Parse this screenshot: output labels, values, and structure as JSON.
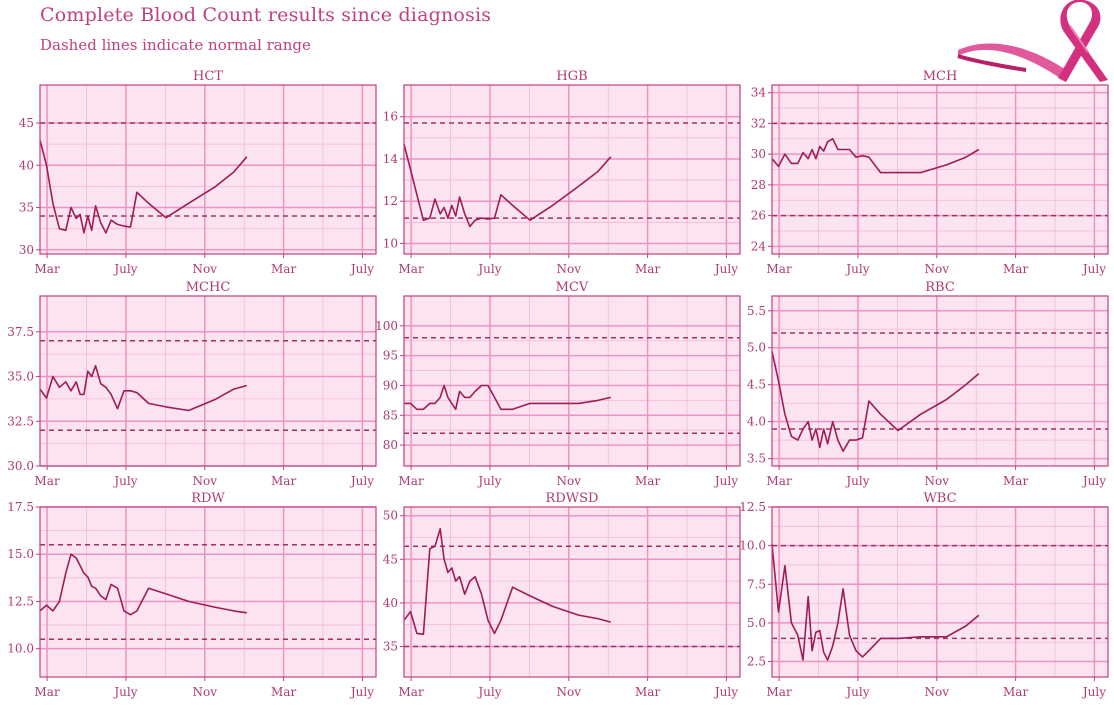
{
  "header": {
    "title": "Complete Blood Count results since diagnosis",
    "subtitle": "Dashed lines indicate normal range"
  },
  "colors": {
    "panel_bg": "#fbe4f0",
    "grid": "#ee93c6",
    "border": "#c2407f",
    "line": "#9e1c57",
    "ref": "#a0315f",
    "text": "#b03a72"
  },
  "chart_data": [
    {
      "type": "line",
      "title": "HCT",
      "x_ticks": [
        "Mar",
        "July",
        "Nov",
        "Mar",
        "July"
      ],
      "xlim": [
        0,
        520
      ],
      "x_tick_values": [
        11,
        133,
        255,
        377,
        499
      ],
      "ylim": [
        29.5,
        49.5
      ],
      "y_ticks": [
        30,
        35,
        40,
        45
      ],
      "y_tick_labels": [
        "30",
        "35",
        "40",
        "45"
      ],
      "ref": [
        34,
        45
      ],
      "series": [
        {
          "x": [
            0,
            10,
            20,
            30,
            40,
            48,
            56,
            62,
            68,
            74,
            80,
            86,
            94,
            102,
            110,
            120,
            130,
            140,
            150,
            168,
            195,
            230,
            270,
            300,
            320
          ],
          "y": [
            43,
            40,
            35.5,
            32.5,
            32.3,
            35,
            33.7,
            34.2,
            32,
            34,
            32.3,
            35.2,
            33.2,
            32,
            33.5,
            33,
            32.8,
            32.7,
            36.8,
            35.5,
            33.8,
            35.5,
            37.4,
            39.2,
            41
          ]
        }
      ]
    },
    {
      "type": "line",
      "title": "HGB",
      "x_ticks": [
        "Mar",
        "July",
        "Nov",
        "Mar",
        "July"
      ],
      "xlim": [
        0,
        520
      ],
      "x_tick_values": [
        11,
        133,
        255,
        377,
        499
      ],
      "ylim": [
        9.5,
        17.5
      ],
      "y_ticks": [
        10,
        12,
        14,
        16
      ],
      "y_tick_labels": [
        "10",
        "12",
        "14",
        "16"
      ],
      "ref": [
        11.2,
        15.7
      ],
      "series": [
        {
          "x": [
            0,
            10,
            20,
            30,
            40,
            48,
            56,
            62,
            68,
            74,
            80,
            86,
            94,
            102,
            110,
            120,
            130,
            140,
            150,
            168,
            195,
            230,
            270,
            300,
            320
          ],
          "y": [
            14.7,
            13.5,
            12.3,
            11.1,
            11.2,
            12.1,
            11.4,
            11.7,
            11.2,
            11.8,
            11.3,
            12.2,
            11.4,
            10.8,
            11.1,
            11.2,
            11.15,
            11.2,
            12.3,
            11.8,
            11.1,
            11.8,
            12.7,
            13.4,
            14.1
          ]
        }
      ]
    },
    {
      "type": "line",
      "title": "MCH",
      "x_ticks": [
        "Mar",
        "July",
        "Nov",
        "Mar",
        "July"
      ],
      "xlim": [
        0,
        520
      ],
      "x_tick_values": [
        11,
        133,
        255,
        377,
        499
      ],
      "ylim": [
        23.5,
        34.5
      ],
      "y_ticks": [
        24,
        26,
        28,
        30,
        32,
        34
      ],
      "y_tick_labels": [
        "24",
        "26",
        "28",
        "30",
        "32",
        "34"
      ],
      "ref": [
        26,
        32
      ],
      "series": [
        {
          "x": [
            0,
            10,
            20,
            30,
            40,
            48,
            56,
            62,
            68,
            74,
            80,
            86,
            94,
            102,
            110,
            120,
            130,
            140,
            150,
            168,
            195,
            230,
            270,
            300,
            320
          ],
          "y": [
            29.7,
            29.2,
            30,
            29.4,
            29.4,
            30.1,
            29.7,
            30.3,
            29.7,
            30.5,
            30.2,
            30.8,
            31,
            30.3,
            30.3,
            30.3,
            29.8,
            29.9,
            29.8,
            28.8,
            28.8,
            28.8,
            29.3,
            29.8,
            30.3
          ]
        }
      ]
    },
    {
      "type": "line",
      "title": "MCHC",
      "x_ticks": [
        "Mar",
        "July",
        "Nov",
        "Mar",
        "July"
      ],
      "xlim": [
        0,
        520
      ],
      "x_tick_values": [
        11,
        133,
        255,
        377,
        499
      ],
      "ylim": [
        30,
        39.5
      ],
      "y_ticks": [
        30,
        32.5,
        35,
        37.5
      ],
      "y_tick_labels": [
        "30.0",
        "32.5",
        "35.0",
        "37.5"
      ],
      "ref": [
        32,
        37
      ],
      "series": [
        {
          "x": [
            0,
            10,
            20,
            30,
            40,
            48,
            56,
            62,
            68,
            74,
            80,
            86,
            94,
            102,
            110,
            120,
            130,
            140,
            150,
            168,
            195,
            230,
            270,
            300,
            320
          ],
          "y": [
            34.3,
            33.8,
            35,
            34.4,
            34.7,
            34.2,
            34.7,
            34,
            34,
            35.3,
            35,
            35.6,
            34.6,
            34.4,
            34,
            33.2,
            34.2,
            34.2,
            34.1,
            33.5,
            33.3,
            33.1,
            33.7,
            34.3,
            34.5
          ]
        }
      ]
    },
    {
      "type": "line",
      "title": "MCV",
      "x_ticks": [
        "Mar",
        "July",
        "Nov",
        "Mar",
        "July"
      ],
      "xlim": [
        0,
        520
      ],
      "x_tick_values": [
        11,
        133,
        255,
        377,
        499
      ],
      "ylim": [
        76.5,
        105
      ],
      "y_ticks": [
        80,
        85,
        90,
        95,
        100
      ],
      "y_tick_labels": [
        "80",
        "85",
        "90",
        "95",
        "100"
      ],
      "ref": [
        82,
        98
      ],
      "series": [
        {
          "x": [
            0,
            10,
            20,
            30,
            40,
            48,
            56,
            62,
            68,
            74,
            80,
            86,
            94,
            102,
            110,
            120,
            130,
            140,
            150,
            168,
            195,
            230,
            270,
            300,
            320
          ],
          "y": [
            87,
            87,
            86,
            86,
            87,
            87,
            88,
            90,
            88,
            87,
            86,
            89,
            88,
            88,
            89,
            90,
            90,
            88,
            86,
            86,
            87,
            87,
            87,
            87.5,
            88
          ]
        }
      ]
    },
    {
      "type": "line",
      "title": "RBC",
      "x_ticks": [
        "Mar",
        "July",
        "Nov",
        "Mar",
        "July"
      ],
      "xlim": [
        0,
        520
      ],
      "x_tick_values": [
        11,
        133,
        255,
        377,
        499
      ],
      "ylim": [
        3.4,
        5.7
      ],
      "y_ticks": [
        3.5,
        4.0,
        4.5,
        5.0,
        5.5
      ],
      "y_tick_labels": [
        "3.5",
        "4.0",
        "4.5",
        "5.0",
        "5.5"
      ],
      "ref": [
        3.9,
        5.2
      ],
      "series": [
        {
          "x": [
            0,
            10,
            20,
            30,
            40,
            48,
            56,
            62,
            68,
            74,
            80,
            86,
            94,
            102,
            110,
            120,
            130,
            140,
            150,
            168,
            195,
            230,
            270,
            300,
            320
          ],
          "y": [
            4.95,
            4.55,
            4.1,
            3.8,
            3.75,
            3.9,
            4.0,
            3.75,
            3.9,
            3.65,
            3.9,
            3.7,
            4.0,
            3.75,
            3.6,
            3.75,
            3.75,
            3.78,
            4.28,
            4.1,
            3.88,
            4.1,
            4.3,
            4.5,
            4.65
          ]
        }
      ]
    },
    {
      "type": "line",
      "title": "RDW",
      "x_ticks": [
        "Mar",
        "July",
        "Nov",
        "Mar",
        "July"
      ],
      "xlim": [
        0,
        520
      ],
      "x_tick_values": [
        11,
        133,
        255,
        377,
        499
      ],
      "ylim": [
        8.5,
        17.5
      ],
      "y_ticks": [
        10,
        12.5,
        15,
        17.5
      ],
      "y_tick_labels": [
        "10.0",
        "12.5",
        "15.0",
        "17.5"
      ],
      "ref": [
        10.5,
        15.5
      ],
      "series": [
        {
          "x": [
            0,
            10,
            20,
            30,
            40,
            48,
            56,
            62,
            68,
            74,
            80,
            86,
            94,
            102,
            110,
            120,
            130,
            140,
            150,
            168,
            195,
            230,
            270,
            300,
            320
          ],
          "y": [
            12,
            12.3,
            12,
            12.5,
            14,
            15,
            14.8,
            14.4,
            14,
            13.8,
            13.3,
            13.2,
            12.8,
            12.6,
            13.4,
            13.2,
            12,
            11.8,
            12,
            13.2,
            12.9,
            12.5,
            12.2,
            12.0,
            11.9
          ]
        }
      ]
    },
    {
      "type": "line",
      "title": "RDWSD",
      "x_ticks": [
        "Mar",
        "July",
        "Nov",
        "Mar",
        "July"
      ],
      "xlim": [
        0,
        520
      ],
      "x_tick_values": [
        11,
        133,
        255,
        377,
        499
      ],
      "ylim": [
        31.5,
        51
      ],
      "y_ticks": [
        35,
        40,
        45,
        50
      ],
      "y_tick_labels": [
        "35",
        "40",
        "45",
        "50"
      ],
      "ref": [
        35,
        46.5
      ],
      "series": [
        {
          "x": [
            0,
            10,
            20,
            30,
            40,
            48,
            56,
            62,
            68,
            74,
            80,
            86,
            94,
            102,
            110,
            120,
            130,
            140,
            150,
            168,
            195,
            230,
            270,
            300,
            320
          ],
          "y": [
            38,
            39,
            36.5,
            36.4,
            46.2,
            46.5,
            48.5,
            45,
            43.5,
            44,
            42.5,
            43,
            41,
            42.5,
            43,
            41,
            38,
            36.5,
            38,
            41.8,
            40.8,
            39.6,
            38.6,
            38.2,
            37.8
          ]
        }
      ]
    },
    {
      "type": "line",
      "title": "WBC",
      "x_ticks": [
        "Mar",
        "July",
        "Nov",
        "Mar",
        "July"
      ],
      "xlim": [
        0,
        520
      ],
      "x_tick_values": [
        11,
        133,
        255,
        377,
        499
      ],
      "ylim": [
        1.5,
        12.5
      ],
      "y_ticks": [
        2.5,
        5.0,
        7.5,
        10.0,
        12.5
      ],
      "y_tick_labels": [
        "2.5",
        "5.0",
        "7.5",
        "10.0",
        "12.5"
      ],
      "ref": [
        4,
        10
      ],
      "series": [
        {
          "x": [
            0,
            10,
            20,
            30,
            40,
            48,
            56,
            62,
            68,
            74,
            80,
            86,
            94,
            102,
            110,
            120,
            130,
            140,
            150,
            168,
            195,
            230,
            270,
            300,
            320
          ],
          "y": [
            10.1,
            5.7,
            8.7,
            5,
            4.2,
            2.6,
            6.7,
            3.2,
            4.4,
            4.5,
            3.1,
            2.6,
            3.5,
            5,
            7.2,
            4.2,
            3.2,
            2.8,
            3.2,
            4,
            4,
            4.1,
            4.1,
            4.8,
            5.5
          ]
        }
      ]
    }
  ]
}
